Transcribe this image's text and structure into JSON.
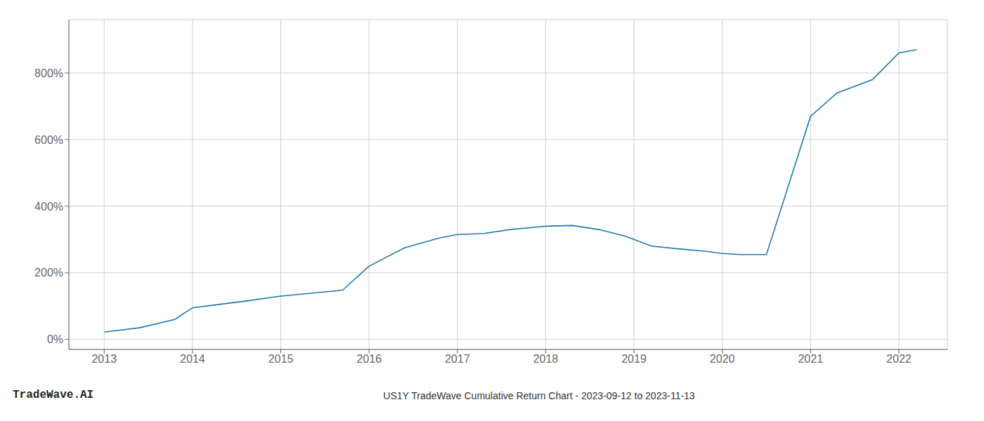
{
  "chart_data": {
    "type": "line",
    "title": "US1Y TradeWave Cumulative Return Chart - 2023-09-12 to 2023-11-13",
    "annotations": [
      "TradeWave.AI"
    ],
    "x": [
      2013.0,
      2013.4,
      2013.8,
      2014.0,
      2014.3,
      2014.6,
      2015.0,
      2015.4,
      2015.7,
      2016.0,
      2016.4,
      2016.8,
      2017.0,
      2017.3,
      2017.6,
      2018.0,
      2018.3,
      2018.6,
      2018.9,
      2019.2,
      2019.5,
      2019.8,
      2020.0,
      2020.2,
      2020.5,
      2021.0,
      2021.3,
      2021.7,
      2022.0,
      2022.2
    ],
    "values": [
      22,
      35,
      60,
      95,
      105,
      115,
      130,
      140,
      148,
      220,
      275,
      305,
      315,
      318,
      330,
      340,
      342,
      330,
      310,
      280,
      272,
      265,
      258,
      255,
      255,
      670,
      740,
      780,
      860,
      870
    ],
    "color": "#2176ae",
    "xlim": [
      2012.6,
      2022.55
    ],
    "ylim": [
      -30,
      960
    ],
    "xticks": [
      2013,
      2014,
      2015,
      2016,
      2017,
      2018,
      2019,
      2020,
      2021,
      2022
    ],
    "yticks": [
      {
        "value": 0,
        "label": "0%"
      },
      {
        "value": 200,
        "label": "200%"
      },
      {
        "value": 400,
        "label": "400%"
      },
      {
        "value": 600,
        "label": "600%"
      },
      {
        "value": 800,
        "label": "800%"
      }
    ],
    "grid": true
  }
}
